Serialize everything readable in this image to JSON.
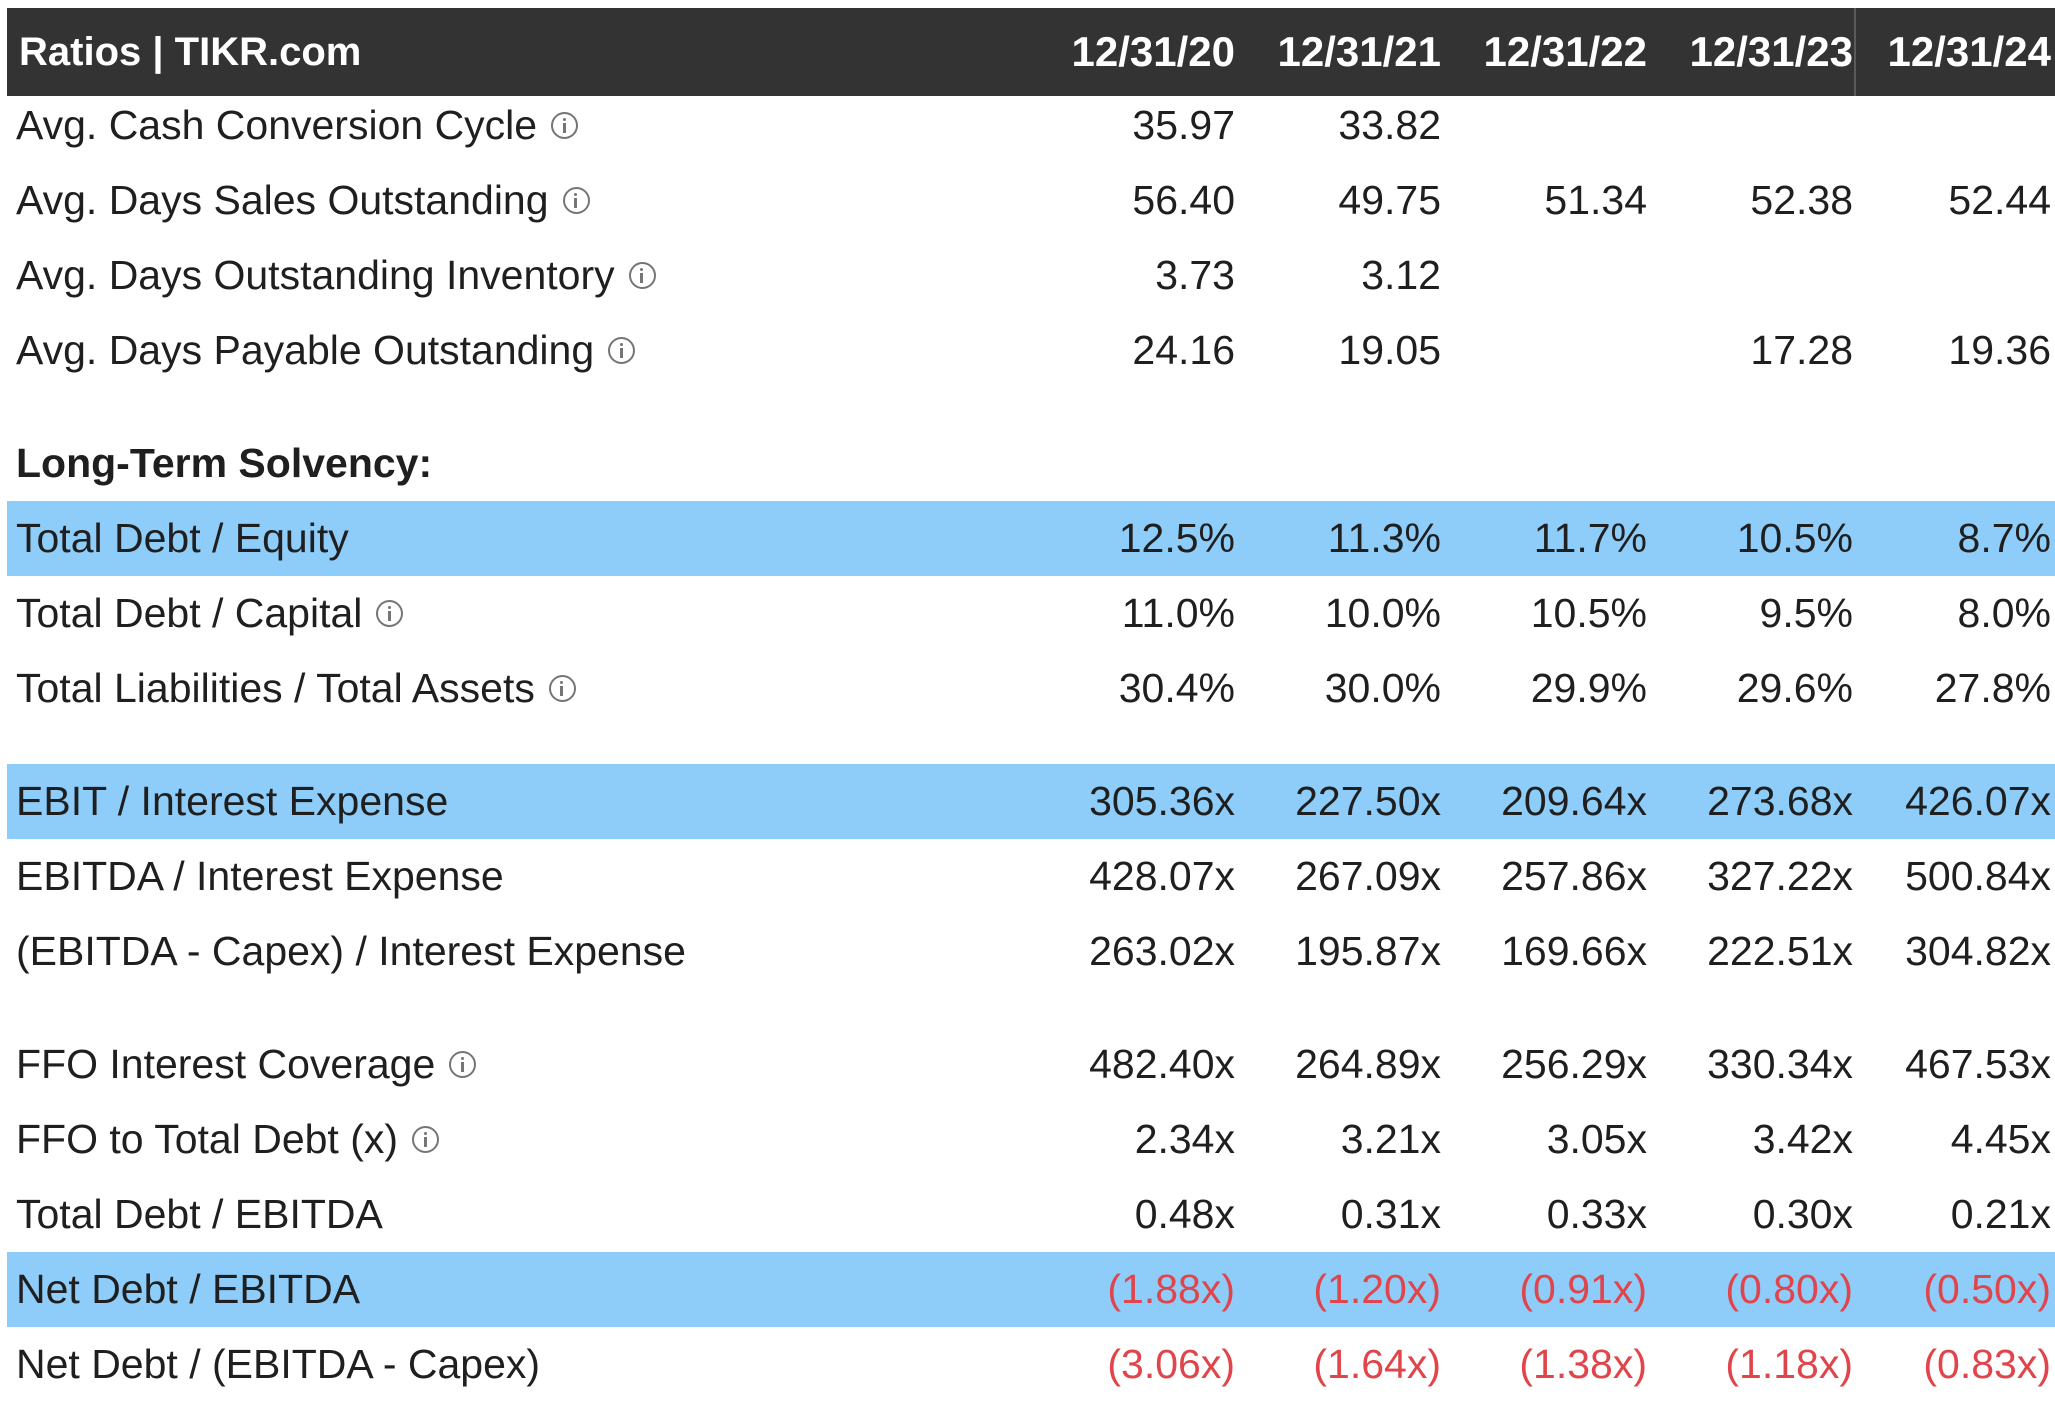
{
  "header": {
    "title": "Ratios | TIKR.com",
    "dates": [
      "12/31/20",
      "12/31/21",
      "12/31/22",
      "12/31/23",
      "12/31/24"
    ]
  },
  "rows": [
    {
      "label": "Avg. Cash Conversion Cycle",
      "info": true,
      "highlight": false,
      "section": false,
      "values": [
        "35.97",
        "33.82",
        "",
        "",
        ""
      ]
    },
    {
      "label": "Avg. Days Sales Outstanding",
      "info": true,
      "highlight": false,
      "section": false,
      "values": [
        "56.40",
        "49.75",
        "51.34",
        "52.38",
        "52.44"
      ]
    },
    {
      "label": "Avg. Days Outstanding Inventory",
      "info": true,
      "highlight": false,
      "section": false,
      "values": [
        "3.73",
        "3.12",
        "",
        "",
        ""
      ]
    },
    {
      "label": "Avg. Days Payable Outstanding",
      "info": true,
      "highlight": false,
      "section": false,
      "values": [
        "24.16",
        "19.05",
        "",
        "17.28",
        "19.36"
      ]
    },
    {
      "label": "Long-Term Solvency:",
      "info": false,
      "highlight": false,
      "section": true,
      "values": [
        "",
        "",
        "",
        "",
        ""
      ]
    },
    {
      "label": "Total Debt / Equity",
      "info": false,
      "highlight": true,
      "section": false,
      "values": [
        "12.5%",
        "11.3%",
        "11.7%",
        "10.5%",
        "8.7%"
      ]
    },
    {
      "label": "Total Debt / Capital",
      "info": true,
      "highlight": false,
      "section": false,
      "values": [
        "11.0%",
        "10.0%",
        "10.5%",
        "9.5%",
        "8.0%"
      ]
    },
    {
      "label": "Total Liabilities / Total Assets",
      "info": true,
      "highlight": false,
      "section": false,
      "values": [
        "30.4%",
        "30.0%",
        "29.9%",
        "29.6%",
        "27.8%"
      ]
    },
    {
      "label": "EBIT / Interest Expense",
      "info": false,
      "highlight": true,
      "section": false,
      "values": [
        "305.36x",
        "227.50x",
        "209.64x",
        "273.68x",
        "426.07x"
      ]
    },
    {
      "label": "EBITDA / Interest Expense",
      "info": false,
      "highlight": false,
      "section": false,
      "values": [
        "428.07x",
        "267.09x",
        "257.86x",
        "327.22x",
        "500.84x"
      ]
    },
    {
      "label": "(EBITDA - Capex) / Interest Expense",
      "info": false,
      "highlight": false,
      "section": false,
      "values": [
        "263.02x",
        "195.87x",
        "169.66x",
        "222.51x",
        "304.82x"
      ]
    },
    {
      "label": "FFO Interest Coverage",
      "info": true,
      "highlight": false,
      "section": false,
      "values": [
        "482.40x",
        "264.89x",
        "256.29x",
        "330.34x",
        "467.53x"
      ]
    },
    {
      "label": "FFO to Total Debt (x)",
      "info": true,
      "highlight": false,
      "section": false,
      "values": [
        "2.34x",
        "3.21x",
        "3.05x",
        "3.42x",
        "4.45x"
      ]
    },
    {
      "label": "Total Debt / EBITDA",
      "info": false,
      "highlight": false,
      "section": false,
      "values": [
        "0.48x",
        "0.31x",
        "0.33x",
        "0.30x",
        "0.21x"
      ]
    },
    {
      "label": "Net Debt / EBITDA",
      "info": false,
      "highlight": true,
      "section": false,
      "values": [
        "(1.88x)",
        "(1.20x)",
        "(0.91x)",
        "(0.80x)",
        "(0.50x)"
      ]
    },
    {
      "label": "Net Debt / (EBITDA - Capex)",
      "info": false,
      "highlight": false,
      "section": false,
      "values": [
        "(3.06x)",
        "(1.64x)",
        "(1.38x)",
        "(1.18x)",
        "(0.83x)"
      ]
    }
  ]
}
